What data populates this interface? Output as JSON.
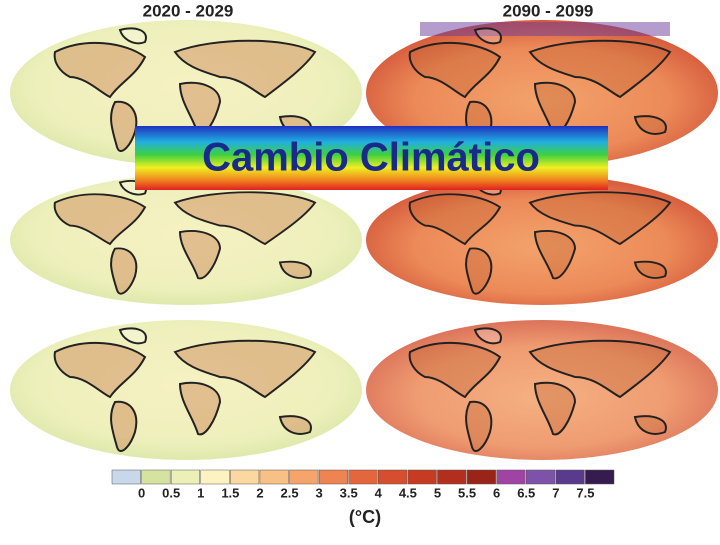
{
  "panels": {
    "left_title": "2020 - 2029",
    "right_title": "2090 - 2099"
  },
  "banner": {
    "title": "Cambio Climático"
  },
  "colorbar": {
    "labels": [
      0,
      0.5,
      1,
      1.5,
      2,
      2.5,
      3,
      3.5,
      4,
      4.5,
      5,
      5.5,
      6,
      6.5,
      7,
      7.5
    ],
    "colors": [
      "#c8d8ea",
      "#d6e3a0",
      "#ecefb6",
      "#fdf3c2",
      "#fbd8a0",
      "#f8c084",
      "#f5a56b",
      "#ee8550",
      "#e3663c",
      "#d64e2d",
      "#c63b22",
      "#b32e1c",
      "#9a2418",
      "#a044a4",
      "#7f52aa",
      "#5a3a8c",
      "#361c4e"
    ],
    "unit": "(°C)"
  }
}
